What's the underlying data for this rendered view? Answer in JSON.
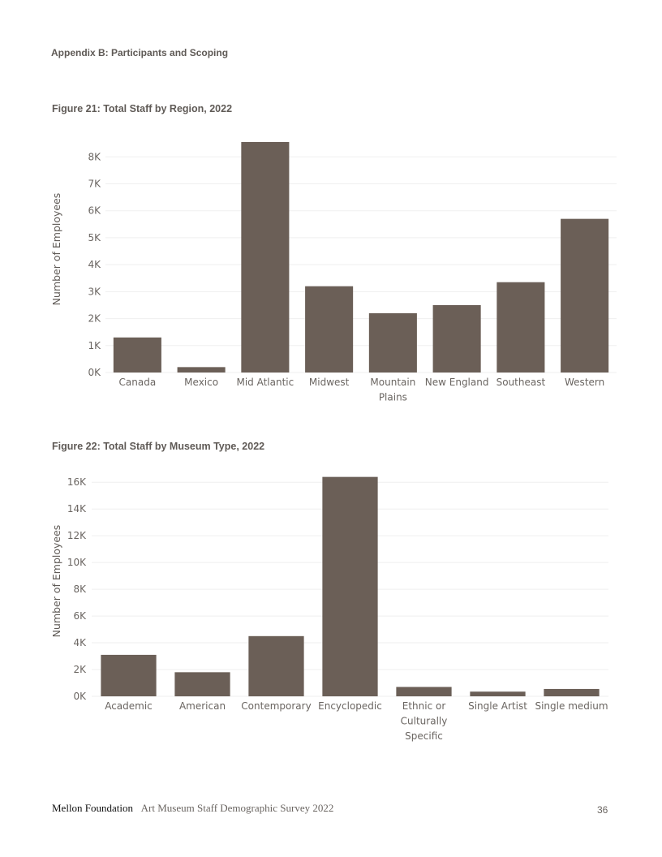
{
  "header": {
    "section": "Appendix B: Participants and Scoping"
  },
  "figures": {
    "fig21": {
      "title": "Figure 21: Total Staff by Region, 2022"
    },
    "fig22": {
      "title": "Figure 22: Total Staff by Museum Type, 2022"
    }
  },
  "chart_data": [
    {
      "type": "bar",
      "title": "Figure 21: Total Staff by Region, 2022",
      "xlabel": "",
      "ylabel": "Number of Employees",
      "categories": [
        "Canada",
        "Mexico",
        "Mid Atlantic",
        "Midwest",
        "Mountain Plains",
        "New England",
        "Southeast",
        "Western"
      ],
      "category_lines": [
        [
          "Canada"
        ],
        [
          "Mexico"
        ],
        [
          "Mid Atlantic"
        ],
        [
          "Midwest"
        ],
        [
          "Mountain",
          "Plains"
        ],
        [
          "New England"
        ],
        [
          "Southeast"
        ],
        [
          "Western"
        ]
      ],
      "values": [
        1300,
        200,
        8550,
        3200,
        2200,
        2500,
        3350,
        5700
      ],
      "ylim": [
        0,
        8700
      ],
      "yticks": [
        0,
        1000,
        2000,
        3000,
        4000,
        5000,
        6000,
        7000,
        8000
      ],
      "ytick_labels": [
        "0K",
        "1K",
        "2K",
        "3K",
        "4K",
        "5K",
        "6K",
        "7K",
        "8K"
      ],
      "grid": true,
      "bar_color": "#6b5f57"
    },
    {
      "type": "bar",
      "title": "Figure 22: Total Staff by Museum Type, 2022",
      "xlabel": "",
      "ylabel": "Number of Employees",
      "categories": [
        "Academic",
        "American",
        "Contemporary",
        "Encyclopedic",
        "Ethnic or Culturally Specific",
        "Single Artist",
        "Single medium"
      ],
      "category_lines": [
        [
          "Academic"
        ],
        [
          "American"
        ],
        [
          "Contemporary"
        ],
        [
          "Encyclopedic"
        ],
        [
          "Ethnic or",
          "Culturally",
          "Specific"
        ],
        [
          "Single Artist"
        ],
        [
          "Single medium"
        ]
      ],
      "values": [
        3100,
        1800,
        4500,
        16400,
        700,
        350,
        550
      ],
      "ylim": [
        0,
        16500
      ],
      "yticks": [
        0,
        2000,
        4000,
        6000,
        8000,
        10000,
        12000,
        14000,
        16000
      ],
      "ytick_labels": [
        "0K",
        "2K",
        "4K",
        "6K",
        "8K",
        "10K",
        "12K",
        "14K",
        "16K"
      ],
      "grid": true,
      "bar_color": "#6b5f57"
    }
  ],
  "footer": {
    "brand": "Mellon Foundation",
    "publication": "Art Museum Staff Demographic Survey 2022",
    "page_number": "36"
  }
}
